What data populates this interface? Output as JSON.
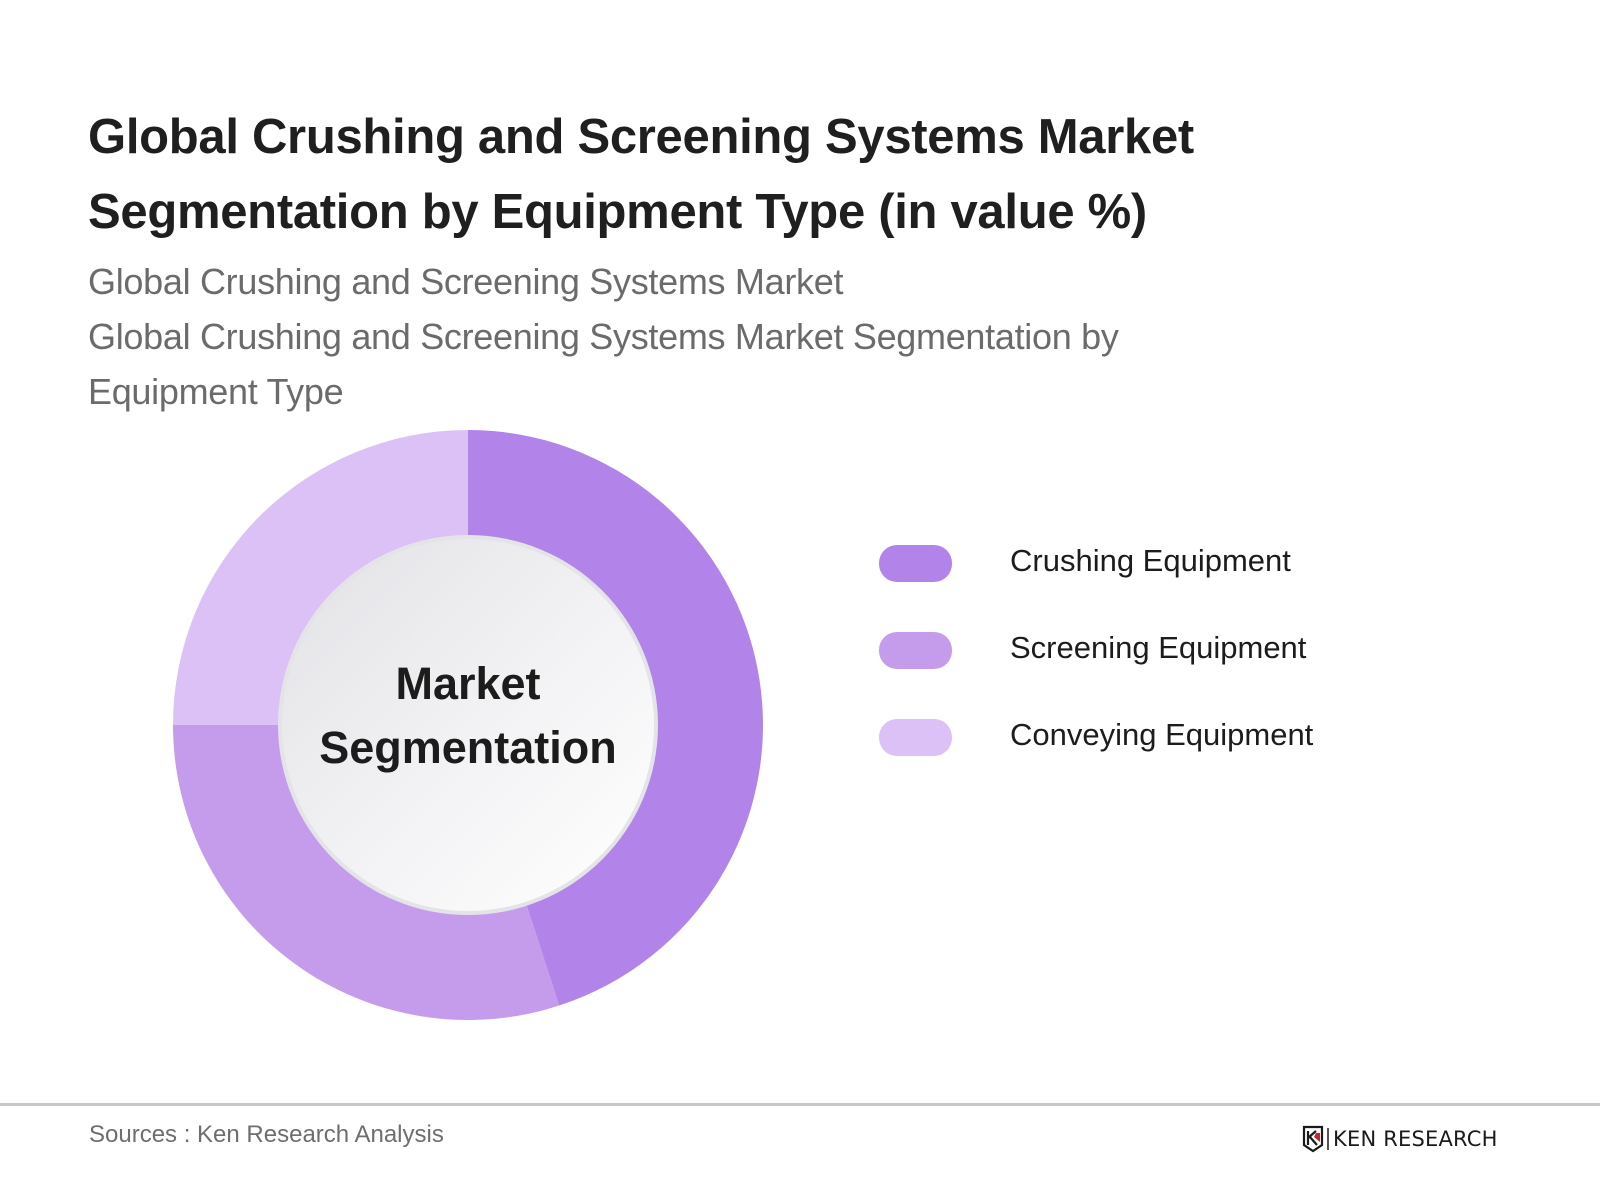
{
  "header": {
    "title_line1": "Global Crushing and Screening Systems Market",
    "title_line2": "Segmentation by Equipment Type (in value %)",
    "subtitle_line1": "Global Crushing and Screening Systems Market",
    "subtitle_line2": "Global Crushing and Screening Systems Market Segmentation by",
    "subtitle_line3": "Equipment Type"
  },
  "center_label": {
    "line1": "Market",
    "line2": "Segmentation"
  },
  "legend": [
    {
      "label": "Crushing Equipment",
      "color": "#b283e8"
    },
    {
      "label": "Screening Equipment",
      "color": "#c59cec"
    },
    {
      "label": "Conveying Equipment",
      "color": "#dcc1f6"
    }
  ],
  "footer": {
    "source": "Sources : Ken Research Analysis",
    "logo_text": "KEN RESEARCH",
    "logo_accent_color": "#c0272d"
  },
  "chart_data": {
    "type": "pie",
    "subtype": "donut",
    "title": "Global Crushing and Screening Systems Market Segmentation by Equipment Type (in value %)",
    "subtitle": "Global Crushing and Screening Systems Market Segmentation by Equipment Type",
    "center_text": "Market Segmentation",
    "categories": [
      "Crushing Equipment",
      "Screening Equipment",
      "Conveying Equipment"
    ],
    "values": [
      45,
      30,
      25
    ],
    "unit": "%",
    "colors": [
      "#b283e8",
      "#c59cec",
      "#dcc1f6"
    ],
    "start_angle": "12 o'clock, clockwise",
    "data_labels": false,
    "legend_position": "right"
  }
}
